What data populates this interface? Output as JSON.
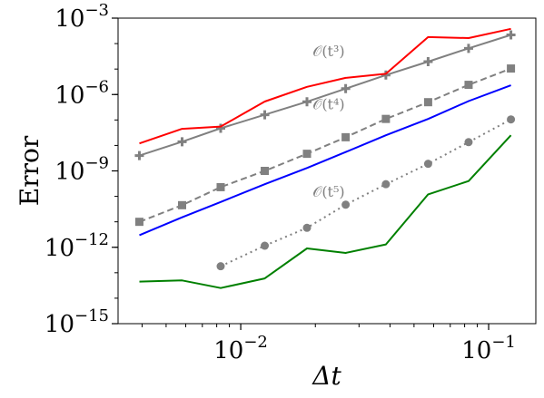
{
  "chart_data": {
    "type": "line",
    "xscale": "log",
    "yscale": "log",
    "xlabel": "Δt",
    "ylabel": "Error",
    "xlim": [
      0.0032,
      0.155
    ],
    "ylim": [
      1e-15,
      0.001
    ],
    "grid": false,
    "x_ticks": [
      {
        "value": 0.01,
        "base": "10",
        "exp": "−2"
      },
      {
        "value": 0.1,
        "base": "10",
        "exp": "−1"
      }
    ],
    "y_ticks": [
      {
        "value": 1e-15,
        "base": "10",
        "exp": "−15"
      },
      {
        "value": 1e-12,
        "base": "10",
        "exp": "−12"
      },
      {
        "value": 1e-09,
        "base": "10",
        "exp": "−9"
      },
      {
        "value": 1e-06,
        "base": "10",
        "exp": "−6"
      },
      {
        "value": 0.001,
        "base": "10",
        "exp": "−3"
      }
    ],
    "series": [
      {
        "color": "#808080",
        "dash": "",
        "marker": "plus",
        "x": [
          0.0039,
          0.0058,
          0.0083,
          0.0125,
          0.0185,
          0.0265,
          0.0385,
          0.057,
          0.083,
          0.123
        ],
        "y": [
          4e-09,
          1.4e-08,
          4.7e-08,
          1.6e-07,
          5.2e-07,
          1.7e-06,
          5.8e-06,
          1.95e-05,
          6.5e-05,
          0.00022
        ]
      },
      {
        "color": "#ff0000",
        "dash": "",
        "marker": "none",
        "x": [
          0.0039,
          0.0058,
          0.0083,
          0.0125,
          0.0185,
          0.0265,
          0.0385,
          0.057,
          0.083,
          0.123
        ],
        "y": [
          1.2e-08,
          4.5e-08,
          5.5e-08,
          5.3e-07,
          2e-06,
          4.5e-06,
          6.5e-06,
          0.00018,
          0.000165,
          0.00038
        ]
      },
      {
        "color": "#808080",
        "dash": "7,4",
        "marker": "square",
        "x": [
          0.0039,
          0.0058,
          0.0083,
          0.0125,
          0.0185,
          0.0265,
          0.0385,
          0.057,
          0.083,
          0.123
        ],
        "y": [
          1e-11,
          4.5e-11,
          2.3e-10,
          1e-09,
          4.7e-09,
          2.1e-08,
          1.1e-07,
          5e-07,
          2.4e-06,
          1.05e-05
        ]
      },
      {
        "color": "#0000ff",
        "dash": "",
        "marker": "none",
        "x": [
          0.0039,
          0.0058,
          0.0083,
          0.0125,
          0.0185,
          0.0265,
          0.0385,
          0.057,
          0.083,
          0.123
        ],
        "y": [
          3e-12,
          1.5e-11,
          6e-11,
          3e-10,
          1.3e-09,
          5.5e-09,
          2.5e-08,
          1.1e-07,
          5.5e-07,
          2.3e-06
        ]
      },
      {
        "color": "#808080",
        "dash": "2,4",
        "marker": "circle",
        "x": [
          0.0083,
          0.0125,
          0.0185,
          0.0265,
          0.0385,
          0.057,
          0.083,
          0.123
        ],
        "y": [
          1.8e-13,
          1.15e-12,
          5.8e-12,
          4.7e-11,
          3e-10,
          1.9e-09,
          1.35e-08,
          1.05e-07
        ]
      },
      {
        "color": "#008000",
        "dash": "",
        "marker": "none",
        "x": [
          0.0039,
          0.0058,
          0.0083,
          0.0125,
          0.0185,
          0.0265,
          0.0385,
          0.057,
          0.083,
          0.123
        ],
        "y": [
          4.5e-14,
          5e-14,
          2.5e-14,
          6e-14,
          9e-13,
          6e-13,
          1.3e-12,
          1.2e-10,
          4e-10,
          2.5e-08
        ]
      }
    ],
    "annotations": [
      {
        "text": "𝒪(t³)",
        "x": 0.0195,
        "y": 3.2e-05
      },
      {
        "text": "𝒪(t⁴)",
        "x": 0.0195,
        "y": 2.6e-07
      },
      {
        "text": "𝒪(t⁵)",
        "x": 0.0195,
        "y": 9.5e-11
      }
    ]
  }
}
